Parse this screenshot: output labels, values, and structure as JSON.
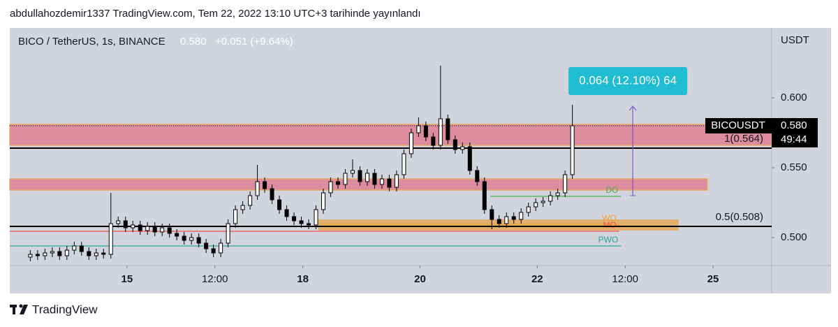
{
  "header": "abdullahozdemir1337 TradingView.com, Tem 22, 2022 13:10 UTC+3 tarihinde yayınlandı",
  "footer": "TradingView",
  "chart_data": {
    "type": "candlestick",
    "title": "BICO / TetherUS, 1s, BINANCE",
    "last_price_text": "0.580",
    "change_text": "+0.051 (+9.64%)",
    "currency": "USDT",
    "symbol": "BICOUSDT",
    "countdown": "49:44",
    "up_color": "#ffffff",
    "down_color": "#000000",
    "xlim": [
      13,
      26
    ],
    "ylim": [
      0.48,
      0.65
    ],
    "xticks": [
      {
        "value": 15,
        "label": "15"
      },
      {
        "value": 16.5,
        "label": "12:00"
      },
      {
        "value": 18,
        "label": "18"
      },
      {
        "value": 20,
        "label": "20"
      },
      {
        "value": 22,
        "label": "22"
      },
      {
        "value": 23.5,
        "label": "12:00"
      },
      {
        "value": 25,
        "label": "25"
      }
    ],
    "yticks": [
      {
        "value": 0.5,
        "label": "0.500"
      },
      {
        "value": 0.55,
        "label": "0.550"
      },
      {
        "value": 0.6,
        "label": "0.600"
      }
    ],
    "last_price": {
      "value": 0.58,
      "label": "0.580"
    },
    "candles": {
      "x": [
        13.35,
        13.475,
        13.6,
        13.725,
        13.85,
        13.975,
        14.1,
        14.225,
        14.35,
        14.475,
        14.6,
        14.725,
        14.85,
        14.975,
        15.1,
        15.225,
        15.35,
        15.475,
        15.6,
        15.725,
        15.85,
        15.975,
        16.1,
        16.225,
        16.35,
        16.475,
        16.6,
        16.725,
        16.85,
        16.975,
        17.1,
        17.225,
        17.35,
        17.475,
        17.6,
        17.725,
        17.85,
        17.975,
        18.1,
        18.225,
        18.35,
        18.475,
        18.6,
        18.725,
        18.85,
        18.975,
        19.1,
        19.225,
        19.35,
        19.475,
        19.6,
        19.725,
        19.85,
        19.975,
        20.1,
        20.225,
        20.35,
        20.475,
        20.6,
        20.725,
        20.85,
        20.975,
        21.1,
        21.225,
        21.35,
        21.475,
        21.6,
        21.725,
        21.85,
        21.975,
        22.1,
        22.225,
        22.35,
        22.475,
        22.6
      ],
      "open": [
        0.486,
        0.488,
        0.487,
        0.489,
        0.49,
        0.487,
        0.491,
        0.494,
        0.49,
        0.487,
        0.489,
        0.488,
        0.51,
        0.512,
        0.507,
        0.509,
        0.505,
        0.508,
        0.504,
        0.507,
        0.503,
        0.501,
        0.498,
        0.5,
        0.496,
        0.492,
        0.489,
        0.496,
        0.51,
        0.52,
        0.523,
        0.53,
        0.54,
        0.535,
        0.527,
        0.52,
        0.515,
        0.512,
        0.51,
        0.509,
        0.52,
        0.532,
        0.54,
        0.538,
        0.546,
        0.548,
        0.54,
        0.546,
        0.538,
        0.542,
        0.536,
        0.545,
        0.56,
        0.575,
        0.58,
        0.572,
        0.566,
        0.585,
        0.57,
        0.563,
        0.565,
        0.548,
        0.54,
        0.52,
        0.513,
        0.51,
        0.515,
        0.513,
        0.518,
        0.522,
        0.525,
        0.526,
        0.53,
        0.532,
        0.545
      ],
      "high": [
        0.491,
        0.491,
        0.492,
        0.493,
        0.493,
        0.494,
        0.497,
        0.497,
        0.493,
        0.492,
        0.492,
        0.532,
        0.515,
        0.515,
        0.512,
        0.512,
        0.511,
        0.511,
        0.51,
        0.51,
        0.506,
        0.504,
        0.503,
        0.503,
        0.499,
        0.495,
        0.499,
        0.513,
        0.523,
        0.526,
        0.533,
        0.552,
        0.543,
        0.538,
        0.53,
        0.523,
        0.518,
        0.515,
        0.513,
        0.523,
        0.535,
        0.543,
        0.543,
        0.549,
        0.556,
        0.551,
        0.549,
        0.549,
        0.545,
        0.545,
        0.548,
        0.563,
        0.578,
        0.586,
        0.583,
        0.575,
        0.623,
        0.588,
        0.573,
        0.568,
        0.568,
        0.551,
        0.543,
        0.523,
        0.516,
        0.518,
        0.518,
        0.521,
        0.525,
        0.528,
        0.529,
        0.533,
        0.535,
        0.548,
        0.595
      ],
      "low": [
        0.483,
        0.484,
        0.484,
        0.486,
        0.484,
        0.484,
        0.488,
        0.487,
        0.484,
        0.484,
        0.485,
        0.485,
        0.507,
        0.504,
        0.504,
        0.502,
        0.502,
        0.501,
        0.501,
        0.5,
        0.498,
        0.495,
        0.495,
        0.493,
        0.489,
        0.486,
        0.486,
        0.493,
        0.507,
        0.517,
        0.52,
        0.527,
        0.532,
        0.524,
        0.517,
        0.512,
        0.509,
        0.507,
        0.506,
        0.506,
        0.517,
        0.529,
        0.535,
        0.535,
        0.543,
        0.537,
        0.537,
        0.535,
        0.535,
        0.533,
        0.533,
        0.542,
        0.557,
        0.572,
        0.569,
        0.563,
        0.563,
        0.567,
        0.56,
        0.56,
        0.545,
        0.537,
        0.517,
        0.506,
        0.507,
        0.507,
        0.51,
        0.51,
        0.515,
        0.519,
        0.522,
        0.523,
        0.527,
        0.529,
        0.542
      ],
      "close": [
        0.488,
        0.487,
        0.489,
        0.49,
        0.487,
        0.491,
        0.494,
        0.49,
        0.487,
        0.489,
        0.488,
        0.51,
        0.512,
        0.507,
        0.509,
        0.505,
        0.508,
        0.504,
        0.507,
        0.503,
        0.501,
        0.498,
        0.5,
        0.496,
        0.492,
        0.489,
        0.496,
        0.51,
        0.52,
        0.523,
        0.53,
        0.54,
        0.535,
        0.527,
        0.52,
        0.515,
        0.512,
        0.51,
        0.509,
        0.52,
        0.532,
        0.54,
        0.538,
        0.546,
        0.548,
        0.54,
        0.546,
        0.538,
        0.542,
        0.536,
        0.545,
        0.56,
        0.575,
        0.58,
        0.572,
        0.566,
        0.585,
        0.57,
        0.563,
        0.565,
        0.548,
        0.54,
        0.52,
        0.513,
        0.51,
        0.515,
        0.513,
        0.518,
        0.522,
        0.525,
        0.526,
        0.53,
        0.532,
        0.545,
        0.58
      ]
    },
    "zones": [
      {
        "from": 0.566,
        "to": 0.581,
        "color": "#e07f94",
        "x_end": 26
      },
      {
        "from": 0.534,
        "to": 0.542,
        "color": "#e07f94",
        "x_end": 24.9
      },
      {
        "from": 0.5055,
        "to": 0.5125,
        "color": "#e5aa5a",
        "x_start": 18.27,
        "x_end": 24.4
      }
    ],
    "levels": [
      {
        "label": "1(0.564)",
        "value": 0.564
      },
      {
        "label": "0.5(0.508)",
        "value": 0.508
      }
    ],
    "markers": [
      {
        "label": "DO",
        "value": 0.5295,
        "color": "#4caf50",
        "x_start": 21.2,
        "x_end": 23.43
      },
      {
        "label": "WO",
        "value": 0.5095,
        "color": "#f0a030",
        "x_start": 18.27,
        "x_end": 23.4
      },
      {
        "label": "MO",
        "value": 0.5045,
        "color": "#f05050",
        "x_start": 13,
        "x_end": 23.4
      },
      {
        "label": "PWO",
        "value": 0.494,
        "color": "#26a69a",
        "x_start": 13,
        "x_end": 23.43
      }
    ],
    "measure": {
      "from": 0.53,
      "to": 0.594,
      "x": 23.63,
      "label": "0.064 (12.10%) 64",
      "color": "#7e57c2"
    }
  }
}
